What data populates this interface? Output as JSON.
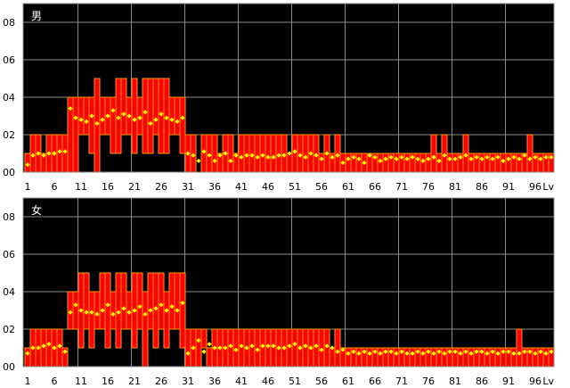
{
  "chart_data": [
    {
      "type": "bar",
      "title": "男",
      "xlabel": "Lv",
      "ylim": [
        0,
        0.09
      ],
      "grid": true,
      "x_tick_labels": [
        "1",
        "6",
        "11",
        "16",
        "21",
        "26",
        "31",
        "36",
        "41",
        "46",
        "51",
        "56",
        "61",
        "66",
        "71",
        "76",
        "81",
        "86",
        "91",
        "96",
        "Lv"
      ],
      "y_tick_labels": [
        "00",
        "02",
        "04",
        "06",
        "08"
      ],
      "y_tick_values": [
        0,
        0.02,
        0.04,
        0.06,
        0.08
      ],
      "series": [
        {
          "type": "range-bar",
          "x": [
            1,
            2,
            3,
            4,
            5,
            6,
            7,
            8,
            9,
            10,
            11,
            12,
            13,
            14,
            15,
            16,
            17,
            18,
            19,
            20,
            21,
            22,
            23,
            24,
            25,
            26,
            27,
            28,
            29,
            30,
            31,
            32,
            33,
            34,
            35,
            36,
            37,
            38,
            39,
            40,
            41,
            42,
            43,
            44,
            45,
            46,
            47,
            48,
            49,
            50,
            51,
            52,
            53,
            54,
            55,
            56,
            57,
            58,
            59,
            60,
            61,
            62,
            63,
            64,
            65,
            66,
            67,
            68,
            69,
            70,
            71,
            72,
            73,
            74,
            75,
            76,
            77,
            78,
            79,
            80,
            81,
            82,
            83,
            84,
            85,
            86,
            87,
            88,
            89,
            90,
            91,
            92,
            93,
            94,
            95,
            96,
            97,
            98,
            99
          ],
          "low": [
            0,
            0,
            0,
            0,
            0,
            0,
            0,
            0,
            0,
            0,
            0.02,
            0.02,
            0.01,
            0,
            0.02,
            0.02,
            0.01,
            0.01,
            0.02,
            0.02,
            0.01,
            0.02,
            0.01,
            0.01,
            0.02,
            0.01,
            0.01,
            0.02,
            0.02,
            0.01,
            0,
            0,
            0.01,
            0,
            0,
            0,
            0,
            0,
            0,
            0,
            0,
            0,
            0,
            0,
            0,
            0,
            0,
            0,
            0,
            0,
            0,
            0,
            0,
            0,
            0,
            0,
            0,
            0,
            0,
            0,
            0,
            0,
            0,
            0,
            0,
            0,
            0,
            0,
            0,
            0,
            0,
            0,
            0,
            0,
            0,
            0,
            0,
            0,
            0,
            0,
            0,
            0,
            0,
            0,
            0,
            0,
            0,
            0,
            0,
            0,
            0,
            0,
            0,
            0,
            0,
            0,
            0,
            0,
            0
          ],
          "high": [
            0.01,
            0.02,
            0.02,
            0.01,
            0.02,
            0.02,
            0.02,
            0.02,
            0.04,
            0.04,
            0.04,
            0.04,
            0.04,
            0.05,
            0.04,
            0.04,
            0.04,
            0.05,
            0.05,
            0.04,
            0.05,
            0.04,
            0.05,
            0.05,
            0.05,
            0.05,
            0.05,
            0.04,
            0.04,
            0.04,
            0.02,
            0.02,
            0.01,
            0.02,
            0.02,
            0.02,
            0.01,
            0.02,
            0.02,
            0.01,
            0.02,
            0.02,
            0.02,
            0.02,
            0.02,
            0.02,
            0.02,
            0.02,
            0.02,
            0.01,
            0.02,
            0.02,
            0.02,
            0.02,
            0.02,
            0.01,
            0.02,
            0.01,
            0.02,
            0.01,
            0.01,
            0.01,
            0.01,
            0.01,
            0.01,
            0.01,
            0.01,
            0.01,
            0.01,
            0.01,
            0.01,
            0.01,
            0.01,
            0.01,
            0.01,
            0.01,
            0.02,
            0.01,
            0.02,
            0.01,
            0.01,
            0.01,
            0.02,
            0.01,
            0.01,
            0.01,
            0.01,
            0.01,
            0.01,
            0.01,
            0.01,
            0.01,
            0.01,
            0.01,
            0.02,
            0.01,
            0.01,
            0.01,
            0.01
          ]
        },
        {
          "type": "scatter",
          "marker_color": "#ffff00",
          "x": [
            1,
            2,
            3,
            4,
            5,
            6,
            7,
            8,
            9,
            10,
            11,
            12,
            13,
            14,
            15,
            16,
            17,
            18,
            19,
            20,
            21,
            22,
            23,
            24,
            25,
            26,
            27,
            28,
            29,
            30,
            31,
            32,
            33,
            34,
            35,
            36,
            37,
            38,
            39,
            40,
            41,
            42,
            43,
            44,
            45,
            46,
            47,
            48,
            49,
            50,
            51,
            52,
            53,
            54,
            55,
            56,
            57,
            58,
            59,
            60,
            61,
            62,
            63,
            64,
            65,
            66,
            67,
            68,
            69,
            70,
            71,
            72,
            73,
            74,
            75,
            76,
            77,
            78,
            79,
            80,
            81,
            82,
            83,
            84,
            85,
            86,
            87,
            88,
            89,
            90,
            91,
            92,
            93,
            94,
            95,
            96,
            97,
            98,
            99
          ],
          "y": [
            0.004,
            0.009,
            0.01,
            0.009,
            0.01,
            0.01,
            0.011,
            0.011,
            0.034,
            0.029,
            0.028,
            0.027,
            0.03,
            0.026,
            0.028,
            0.03,
            0.033,
            0.029,
            0.031,
            0.03,
            0.028,
            0.029,
            0.032,
            0.026,
            0.028,
            0.031,
            0.029,
            0.028,
            0.027,
            0.029,
            0.01,
            0.009,
            0.006,
            0.011,
            0.009,
            0.006,
            0.009,
            0.01,
            0.006,
            0.009,
            0.008,
            0.009,
            0.009,
            0.008,
            0.009,
            0.008,
            0.008,
            0.009,
            0.009,
            0.01,
            0.011,
            0.009,
            0.008,
            0.01,
            0.009,
            0.007,
            0.01,
            0.008,
            0.009,
            0.005,
            0.007,
            0.008,
            0.007,
            0.005,
            0.009,
            0.008,
            0.006,
            0.007,
            0.008,
            0.007,
            0.008,
            0.007,
            0.008,
            0.007,
            0.006,
            0.007,
            0.008,
            0.006,
            0.009,
            0.007,
            0.007,
            0.008,
            0.009,
            0.007,
            0.008,
            0.007,
            0.008,
            0.007,
            0.008,
            0.006,
            0.007,
            0.008,
            0.007,
            0.009,
            0.007,
            0.008,
            0.007,
            0.008,
            0.008
          ]
        }
      ]
    },
    {
      "type": "bar",
      "title": "女",
      "xlabel": "Lv",
      "ylim": [
        0,
        0.09
      ],
      "grid": true,
      "x_tick_labels": [
        "1",
        "6",
        "11",
        "16",
        "21",
        "26",
        "31",
        "36",
        "41",
        "46",
        "51",
        "56",
        "61",
        "66",
        "71",
        "76",
        "81",
        "86",
        "91",
        "96",
        "Lv"
      ],
      "y_tick_labels": [
        "00",
        "02",
        "04",
        "06",
        "08"
      ],
      "y_tick_values": [
        0,
        0.02,
        0.04,
        0.06,
        0.08
      ],
      "series": [
        {
          "type": "range-bar",
          "x": [
            1,
            2,
            3,
            4,
            5,
            6,
            7,
            8,
            9,
            10,
            11,
            12,
            13,
            14,
            15,
            16,
            17,
            18,
            19,
            20,
            21,
            22,
            23,
            24,
            25,
            26,
            27,
            28,
            29,
            30,
            31,
            32,
            33,
            34,
            35,
            36,
            37,
            38,
            39,
            40,
            41,
            42,
            43,
            44,
            45,
            46,
            47,
            48,
            49,
            50,
            51,
            52,
            53,
            54,
            55,
            56,
            57,
            58,
            59,
            60,
            61,
            62,
            63,
            64,
            65,
            66,
            67,
            68,
            69,
            70,
            71,
            72,
            73,
            74,
            75,
            76,
            77,
            78,
            79,
            80,
            81,
            82,
            83,
            84,
            85,
            86,
            87,
            88,
            89,
            90,
            91,
            92,
            93,
            94,
            95,
            96,
            97,
            98,
            99
          ],
          "low": [
            0,
            0,
            0,
            0,
            0,
            0,
            0,
            0,
            0.02,
            0.02,
            0.01,
            0.02,
            0.01,
            0.02,
            0.02,
            0.01,
            0.02,
            0.01,
            0.02,
            0.02,
            0.01,
            0.02,
            0,
            0.02,
            0.01,
            0.02,
            0.01,
            0.02,
            0.02,
            0.01,
            0,
            0,
            0,
            0.01,
            0,
            0,
            0,
            0,
            0,
            0,
            0,
            0,
            0,
            0,
            0,
            0,
            0,
            0,
            0,
            0,
            0,
            0,
            0,
            0,
            0,
            0,
            0,
            0,
            0,
            0,
            0,
            0,
            0,
            0,
            0,
            0,
            0,
            0,
            0,
            0,
            0,
            0,
            0,
            0,
            0,
            0,
            0,
            0,
            0,
            0,
            0,
            0,
            0,
            0,
            0,
            0,
            0,
            0,
            0,
            0,
            0,
            0,
            0,
            0,
            0,
            0,
            0,
            0,
            0
          ],
          "high": [
            0.01,
            0.02,
            0.02,
            0.02,
            0.02,
            0.02,
            0.02,
            0.01,
            0.04,
            0.04,
            0.05,
            0.05,
            0.04,
            0.04,
            0.05,
            0.05,
            0.04,
            0.05,
            0.05,
            0.04,
            0.05,
            0.05,
            0.04,
            0.05,
            0.05,
            0.05,
            0.04,
            0.05,
            0.05,
            0.05,
            0.02,
            0.02,
            0.02,
            0.02,
            0.01,
            0.02,
            0.02,
            0.02,
            0.02,
            0.02,
            0.02,
            0.02,
            0.02,
            0.02,
            0.02,
            0.02,
            0.02,
            0.02,
            0.02,
            0.02,
            0.02,
            0.02,
            0.02,
            0.02,
            0.02,
            0.02,
            0.02,
            0.01,
            0.02,
            0.01,
            0.01,
            0.01,
            0.01,
            0.01,
            0.01,
            0.01,
            0.01,
            0.01,
            0.01,
            0.01,
            0.01,
            0.01,
            0.01,
            0.01,
            0.01,
            0.01,
            0.01,
            0.01,
            0.01,
            0.01,
            0.01,
            0.01,
            0.01,
            0.01,
            0.01,
            0.01,
            0.01,
            0.01,
            0.01,
            0.01,
            0.01,
            0.01,
            0.02,
            0.01,
            0.01,
            0.01,
            0.01,
            0.01,
            0.01
          ]
        },
        {
          "type": "scatter",
          "marker_color": "#ffff00",
          "x": [
            1,
            2,
            3,
            4,
            5,
            6,
            7,
            8,
            9,
            10,
            11,
            12,
            13,
            14,
            15,
            16,
            17,
            18,
            19,
            20,
            21,
            22,
            23,
            24,
            25,
            26,
            27,
            28,
            29,
            30,
            31,
            32,
            33,
            34,
            35,
            36,
            37,
            38,
            39,
            40,
            41,
            42,
            43,
            44,
            45,
            46,
            47,
            48,
            49,
            50,
            51,
            52,
            53,
            54,
            55,
            56,
            57,
            58,
            59,
            60,
            61,
            62,
            63,
            64,
            65,
            66,
            67,
            68,
            69,
            70,
            71,
            72,
            73,
            74,
            75,
            76,
            77,
            78,
            79,
            80,
            81,
            82,
            83,
            84,
            85,
            86,
            87,
            88,
            89,
            90,
            91,
            92,
            93,
            94,
            95,
            96,
            97,
            98,
            99
          ],
          "y": [
            0.007,
            0.01,
            0.01,
            0.011,
            0.012,
            0.01,
            0.011,
            0.008,
            0.029,
            0.033,
            0.03,
            0.029,
            0.029,
            0.028,
            0.03,
            0.033,
            0.028,
            0.029,
            0.031,
            0.029,
            0.03,
            0.032,
            0.028,
            0.03,
            0.031,
            0.033,
            0.03,
            0.032,
            0.03,
            0.034,
            0.007,
            0.01,
            0.014,
            0.008,
            0.012,
            0.01,
            0.01,
            0.01,
            0.011,
            0.009,
            0.011,
            0.01,
            0.011,
            0.009,
            0.011,
            0.011,
            0.011,
            0.01,
            0.01,
            0.011,
            0.012,
            0.01,
            0.011,
            0.01,
            0.011,
            0.009,
            0.011,
            0.01,
            0.008,
            0.009,
            0.007,
            0.008,
            0.007,
            0.008,
            0.007,
            0.008,
            0.007,
            0.008,
            0.008,
            0.007,
            0.008,
            0.007,
            0.007,
            0.008,
            0.007,
            0.008,
            0.007,
            0.008,
            0.007,
            0.008,
            0.008,
            0.007,
            0.008,
            0.007,
            0.008,
            0.008,
            0.007,
            0.008,
            0.007,
            0.008,
            0.008,
            0.007,
            0.007,
            0.008,
            0.008,
            0.007,
            0.008,
            0.007,
            0.008
          ]
        }
      ]
    }
  ]
}
